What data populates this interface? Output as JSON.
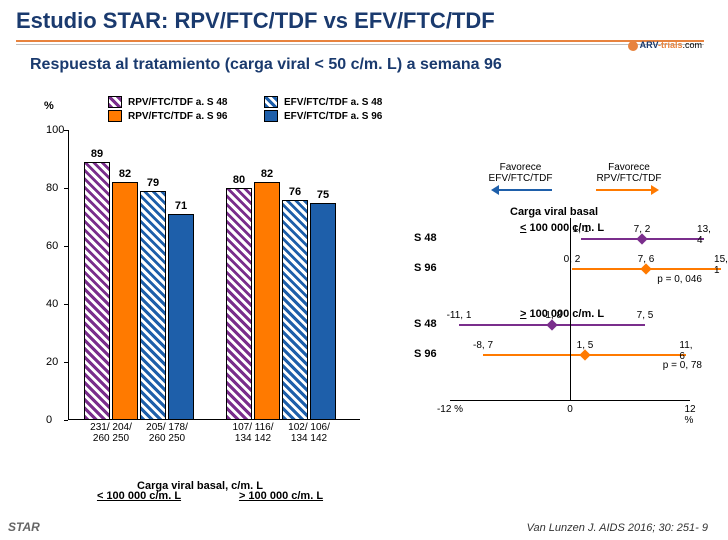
{
  "title": "Estudio STAR: RPV/FTC/TDF vs EFV/FTC/TDF",
  "subtitle": "Respuesta al tratamiento (carga viral < 50 c/m. L) a semana 96",
  "logo": {
    "brand1": "ARV",
    "brand2": "-trials",
    "suffix": ".com"
  },
  "y_axis_label": "%",
  "legend": {
    "a": "RPV/FTC/TDF a. S 48",
    "b": "EFV/FTC/TDF a. S 48",
    "c": "RPV/FTC/TDF a. S 96",
    "d": "EFV/FTC/TDF a. S 96"
  },
  "chart": {
    "type": "bar",
    "ylim": [
      0,
      100
    ],
    "ytick_step": 20,
    "colors": {
      "rpv48": "#7a2e8c",
      "rpv96": "#ff7a00",
      "efv48": "#1e5faa",
      "efv96": "#1e5faa"
    },
    "groups": [
      {
        "label": "< 100 000 c/m. L",
        "bars": [
          {
            "series": "rpv48",
            "value": 89,
            "n": "231/ 260"
          },
          {
            "series": "rpv96",
            "value": 82,
            "n": "204/ 250"
          },
          {
            "series": "efv48",
            "value": 79,
            "n": "205/ 260"
          },
          {
            "series": "efv96",
            "value": 71,
            "n": "178/ 250"
          }
        ]
      },
      {
        "label": "> 100 000 c/m. L",
        "bars": [
          {
            "series": "rpv48",
            "value": 80,
            "n": "107/ 134"
          },
          {
            "series": "rpv96",
            "value": 82,
            "n": "116/ 142"
          },
          {
            "series": "efv48",
            "value": 76,
            "n": "102/ 134"
          },
          {
            "series": "efv96",
            "value": 75,
            "n": "106/ 142"
          }
        ]
      }
    ],
    "caption": "Carga viral basal, c/m. L"
  },
  "forest": {
    "fav_left": "Favorece EFV/FTC/TDF",
    "fav_right": "Favorece RPV/FTC/TDF",
    "header": "Carga viral basal",
    "xlim": [
      -12,
      12
    ],
    "xticks": [
      "-12 %",
      "0",
      "12 %"
    ],
    "sections": [
      {
        "title": "< 100 000 c/m. L",
        "rows": [
          {
            "label": "S 48",
            "lo": 1.1,
            "mid": 7.2,
            "hi": 13.4,
            "color": "#7a2e8c"
          },
          {
            "label": "S 96",
            "lo": 0.2,
            "mid": 7.6,
            "hi": 15.1,
            "color": "#ff7a00",
            "p": "p = 0, 046"
          }
        ]
      },
      {
        "title": "> 100 000 c/m. L",
        "rows": [
          {
            "label": "S 48",
            "lo": -11.1,
            "mid": -1.8,
            "hi": 7.5,
            "color": "#7a2e8c"
          },
          {
            "label": "S 96",
            "lo": -8.7,
            "mid": 1.5,
            "hi": 11.6,
            "color": "#ff7a00",
            "p": "p = 0, 78"
          }
        ]
      }
    ]
  },
  "footer_left": "STAR",
  "footer_right": "Van Lunzen J. AIDS 2016; 30: 251- 9"
}
